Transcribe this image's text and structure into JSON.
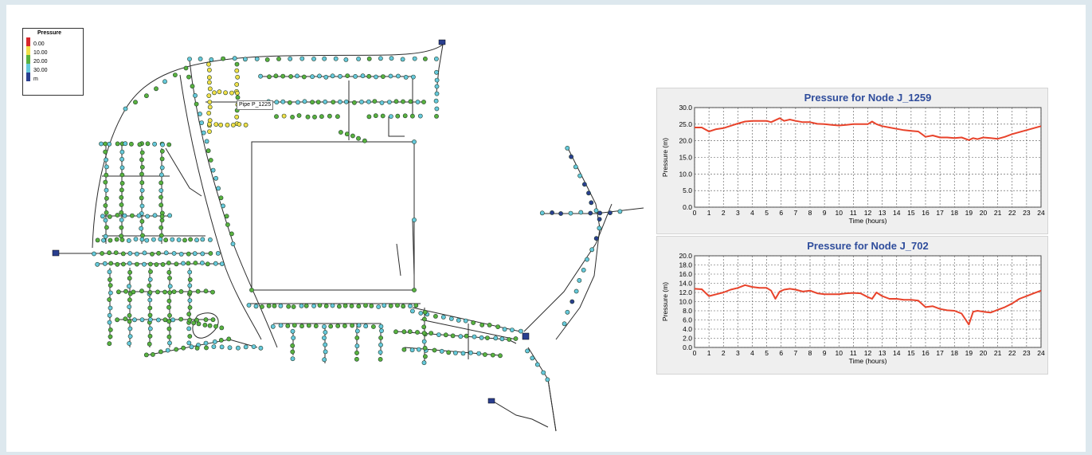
{
  "legend": {
    "title": "Pressure",
    "items": [
      {
        "label": "0.00",
        "color": "#d8262b"
      },
      {
        "label": "10.00",
        "color": "#f1e04a"
      },
      {
        "label": "20.00",
        "color": "#59b23f"
      },
      {
        "label": "30.00",
        "color": "#66c9dc"
      },
      {
        "label": "m",
        "color": "#2a3f8f"
      }
    ]
  },
  "tooltip": "Pipe P_1225",
  "chart_data": [
    {
      "type": "line",
      "title": "Pressure for Node J_1259",
      "xlabel": "Time (hours)",
      "ylabel": "Pressure (m)",
      "xlim": [
        0,
        24
      ],
      "ylim": [
        0,
        30
      ],
      "xticks": [
        "0",
        "1",
        "2",
        "3",
        "4",
        "5",
        "6",
        "7",
        "8",
        "9",
        "10",
        "11",
        "12",
        "13",
        "14",
        "15",
        "16",
        "17",
        "18",
        "19",
        "20",
        "21",
        "22",
        "23",
        "24"
      ],
      "yticks": [
        "0.0",
        "5.0",
        "10.0",
        "15.0",
        "20.0",
        "25.0",
        "30.0"
      ],
      "grid": true,
      "line_color": "#e8432b",
      "x": [
        0,
        0.5,
        1,
        1.5,
        2,
        2.5,
        3,
        3.5,
        4,
        4.5,
        5,
        5.3,
        5.6,
        5.9,
        6.2,
        6.6,
        7,
        7.5,
        8,
        8.5,
        9,
        9.5,
        10,
        10.5,
        11,
        11.5,
        12,
        12.3,
        12.6,
        13,
        13.5,
        14,
        14.5,
        15,
        15.5,
        16,
        16.5,
        17,
        17.5,
        18,
        18.5,
        19,
        19.3,
        19.6,
        20,
        20.5,
        21,
        21.5,
        22,
        22.5,
        23,
        23.5,
        24
      ],
      "y": [
        24,
        24,
        22.8,
        23.5,
        23.8,
        24.5,
        25.2,
        25.8,
        26,
        26,
        26,
        25.6,
        26.2,
        26.8,
        26,
        26.4,
        26,
        25.6,
        25.6,
        25.1,
        25,
        24.8,
        24.6,
        24.8,
        25,
        25,
        25,
        25.8,
        25,
        24.4,
        24,
        23.6,
        23.2,
        23,
        22.8,
        21.2,
        21.6,
        21,
        21,
        20.8,
        21,
        20.2,
        20.8,
        20.5,
        21,
        20.8,
        20.6,
        21.2,
        22,
        22.6,
        23.2,
        23.8,
        24.4
      ]
    },
    {
      "type": "line",
      "title": "Pressure for Node J_702",
      "xlabel": "Time (hours)",
      "ylabel": "Pressure (m)",
      "xlim": [
        0,
        24
      ],
      "ylim": [
        0,
        20
      ],
      "xticks": [
        "0",
        "1",
        "2",
        "3",
        "4",
        "5",
        "6",
        "7",
        "8",
        "9",
        "10",
        "11",
        "12",
        "13",
        "14",
        "15",
        "16",
        "17",
        "18",
        "19",
        "20",
        "21",
        "22",
        "23",
        "24"
      ],
      "yticks": [
        "0.0",
        "2.0",
        "4.0",
        "6.0",
        "8.0",
        "10.0",
        "12.0",
        "14.0",
        "16.0",
        "18.0",
        "20.0"
      ],
      "grid": true,
      "line_color": "#e8432b",
      "x": [
        0,
        0.5,
        1,
        1.5,
        2,
        2.5,
        3,
        3.5,
        4,
        4.5,
        5,
        5.3,
        5.6,
        5.9,
        6.2,
        6.6,
        7,
        7.5,
        8,
        8.5,
        9,
        9.5,
        10,
        10.5,
        11,
        11.5,
        12,
        12.3,
        12.6,
        13,
        13.5,
        14,
        14.5,
        15,
        15.5,
        16,
        16.5,
        17,
        17.5,
        18,
        18.5,
        19,
        19.3,
        19.6,
        20,
        20.5,
        21,
        21.5,
        22,
        22.5,
        23,
        23.5,
        24
      ],
      "y": [
        12.8,
        12.7,
        11.2,
        11.6,
        12,
        12.6,
        13,
        13.6,
        13.2,
        13,
        13,
        12.4,
        10.6,
        12.2,
        12.6,
        12.8,
        12.6,
        12.2,
        12.4,
        11.8,
        11.6,
        11.6,
        11.6,
        11.8,
        11.9,
        11.8,
        11,
        10.6,
        12,
        11.2,
        10.6,
        10.6,
        10.4,
        10.4,
        10.2,
        8.8,
        9,
        8.4,
        8.1,
        8,
        7.4,
        5,
        7.8,
        8,
        7.8,
        7.6,
        8.2,
        8.8,
        9.6,
        10.6,
        11.2,
        11.8,
        12.4
      ]
    }
  ]
}
